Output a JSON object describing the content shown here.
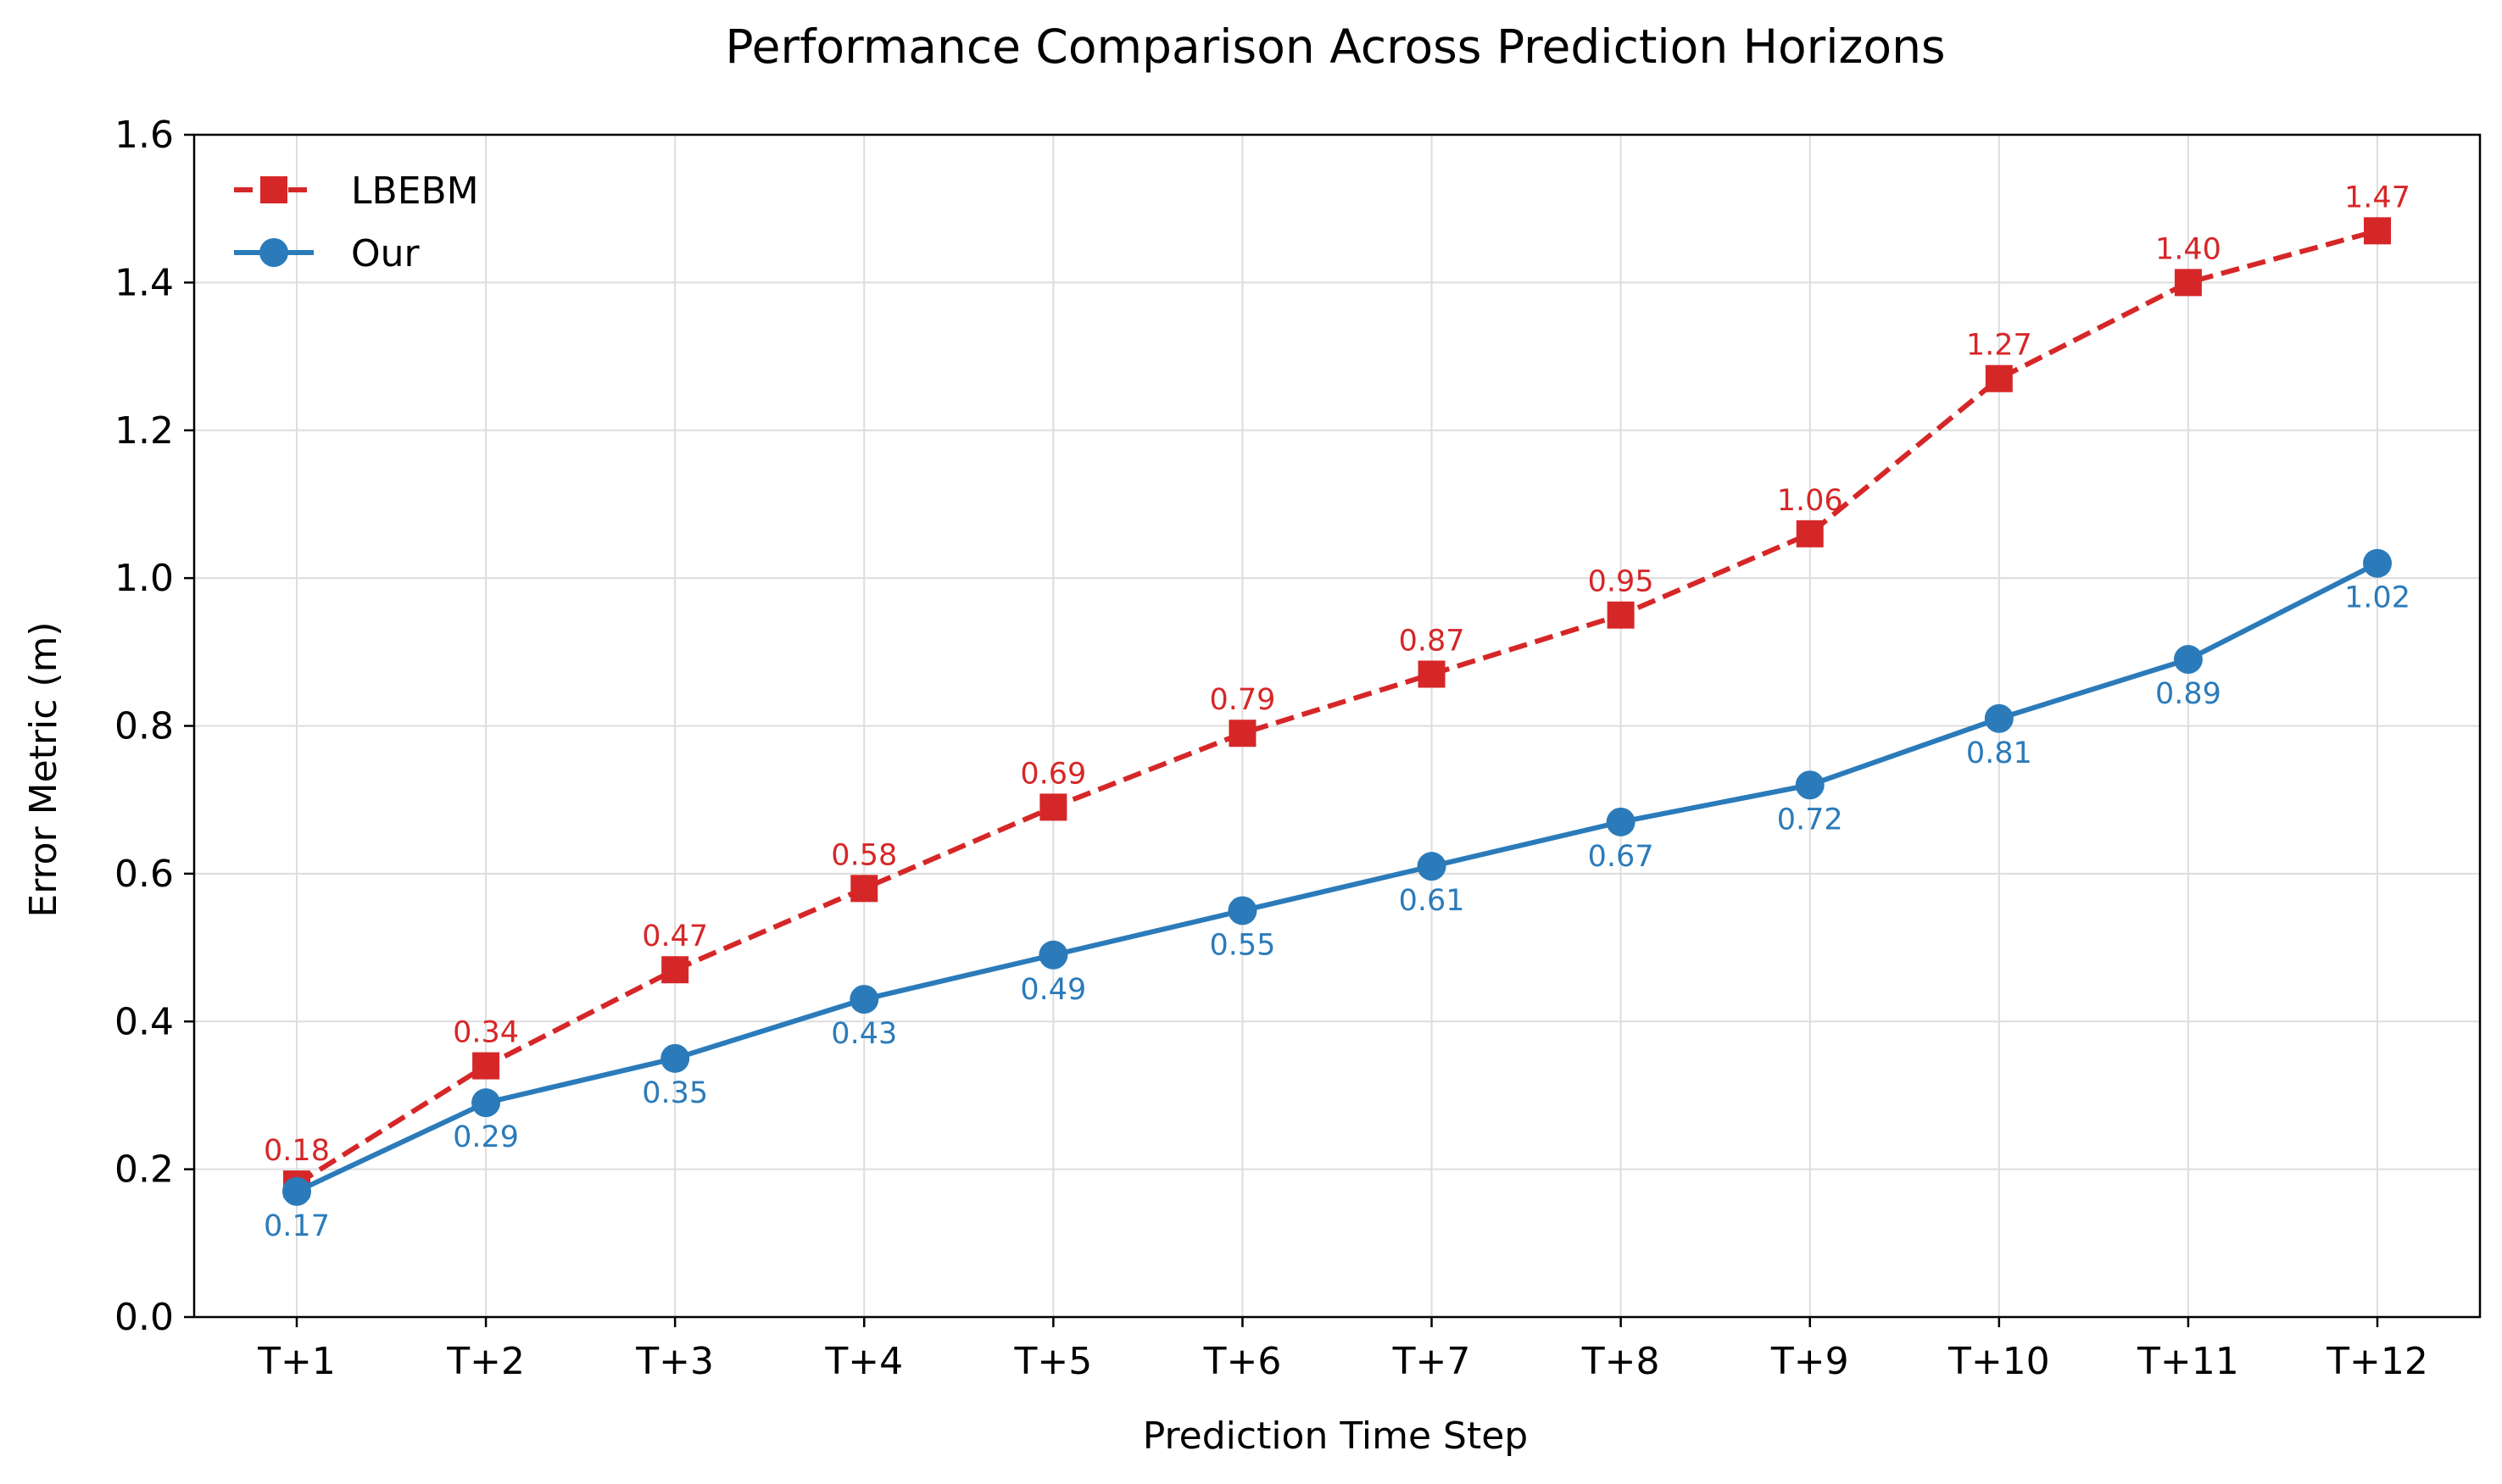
{
  "chart_data": {
    "type": "line",
    "title": "Performance Comparison Across Prediction Horizons",
    "xlabel": "Prediction Time Step",
    "ylabel": "Error Metric (m)",
    "categories": [
      "T+1",
      "T+2",
      "T+3",
      "T+4",
      "T+5",
      "T+6",
      "T+7",
      "T+8",
      "T+9",
      "T+10",
      "T+11",
      "T+12"
    ],
    "ylim": [
      0.0,
      1.6
    ],
    "yticks": [
      "0.0",
      "0.2",
      "0.4",
      "0.6",
      "0.8",
      "1.0",
      "1.2",
      "1.4",
      "1.6"
    ],
    "grid": true,
    "legend_position": "top-left",
    "series": [
      {
        "name": "LBEBM",
        "color": "#d62728",
        "line_style": "dashed",
        "marker": "square",
        "label_position": "above",
        "values": [
          0.18,
          0.34,
          0.47,
          0.58,
          0.69,
          0.79,
          0.87,
          0.95,
          1.06,
          1.27,
          1.4,
          1.47
        ],
        "labels": [
          "0.18",
          "0.34",
          "0.47",
          "0.58",
          "0.69",
          "0.79",
          "0.87",
          "0.95",
          "1.06",
          "1.27",
          "1.40",
          "1.47"
        ]
      },
      {
        "name": "Our",
        "color": "#2b7bba",
        "line_style": "solid",
        "marker": "circle",
        "label_position": "below",
        "values": [
          0.17,
          0.29,
          0.35,
          0.43,
          0.49,
          0.55,
          0.61,
          0.67,
          0.72,
          0.81,
          0.89,
          1.02
        ],
        "labels": [
          "0.17",
          "0.29",
          "0.35",
          "0.43",
          "0.49",
          "0.55",
          "0.61",
          "0.67",
          "0.72",
          "0.81",
          "0.89",
          "1.02"
        ]
      }
    ]
  }
}
